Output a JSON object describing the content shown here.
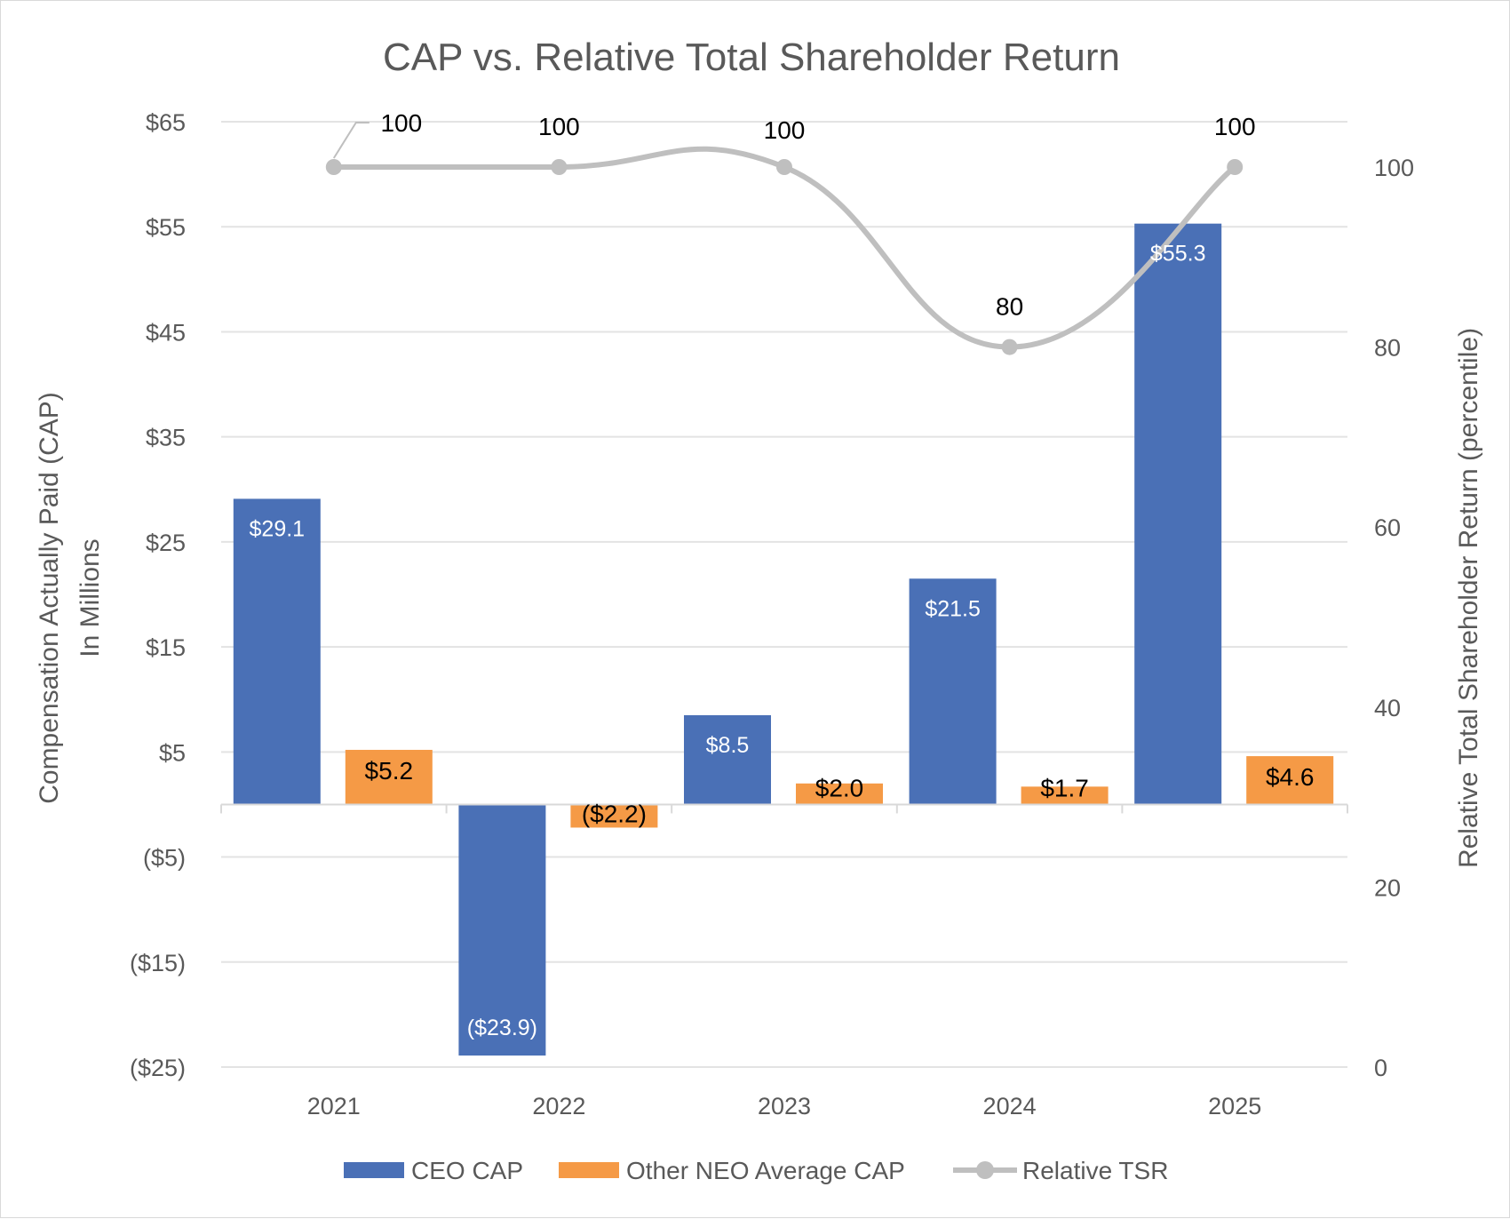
{
  "chart_data": {
    "type": "bar",
    "title": "CAP vs. Relative Total Shareholder Return",
    "categories": [
      "2021",
      "2022",
      "2023",
      "2024",
      "2025"
    ],
    "series": [
      {
        "name": "CEO CAP",
        "type": "bar",
        "axis": "left",
        "color": "#4a70b6",
        "values": [
          29.1,
          -23.9,
          8.5,
          21.5,
          55.3
        ],
        "labels": [
          "$29.1",
          "($23.9)",
          "$8.5",
          "$21.5",
          "$55.3"
        ]
      },
      {
        "name": "Other NEO Average CAP",
        "type": "bar",
        "axis": "left",
        "color": "#f59a46",
        "values": [
          5.2,
          -2.2,
          2.0,
          1.7,
          4.6
        ],
        "labels": [
          "$5.2",
          "($2.2)",
          "$2.0",
          "$1.7",
          "$4.6"
        ]
      },
      {
        "name": "Relative TSR",
        "type": "line",
        "axis": "right",
        "color": "#bfbfbf",
        "values": [
          100,
          100,
          100,
          80,
          100
        ],
        "labels": [
          "100",
          "100",
          "100",
          "80",
          "100"
        ]
      }
    ],
    "y_left": {
      "label_line1": "Compensation Actually Paid (CAP)",
      "label_line2": "In Millions",
      "ylim": [
        -25,
        65
      ],
      "ticks": [
        65,
        55,
        45,
        35,
        25,
        15,
        5,
        -5,
        -15,
        -25
      ],
      "tick_labels": [
        "$65",
        "$55",
        "$45",
        "$35",
        "$25",
        "$15",
        "$5",
        "($5)",
        "($15)",
        "($25)"
      ]
    },
    "y_right": {
      "label": "Relative Total Shareholder Return (percentile)",
      "ylim": [
        0,
        100
      ],
      "ticks": [
        100,
        80,
        60,
        40,
        20,
        0
      ],
      "tick_labels": [
        "100",
        "80",
        "60",
        "40",
        "20",
        "0"
      ]
    },
    "grid": true,
    "legend": "bottom"
  }
}
